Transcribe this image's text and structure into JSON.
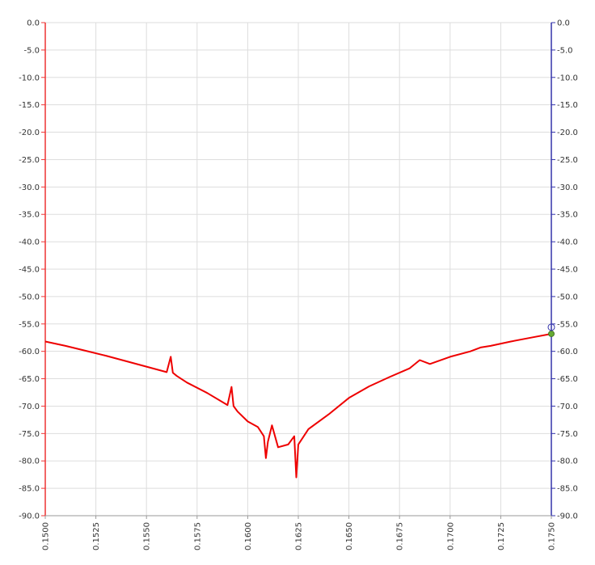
{
  "chart_data": {
    "type": "line",
    "title": "",
    "xlabel": "",
    "ylabel": "",
    "xlim": [
      0.15,
      0.175
    ],
    "ylim": [
      -90,
      0
    ],
    "grid": true,
    "x_ticks": [
      "0.1500",
      "0.1525",
      "0.1550",
      "0.1575",
      "0.1600",
      "0.1625",
      "0.1650",
      "0.1675",
      "0.1700",
      "0.1725",
      "0.1750"
    ],
    "y_ticks_left": [
      "0.0",
      "-5.0",
      "-10.0",
      "-15.0",
      "-20.0",
      "-25.0",
      "-30.0",
      "-35.0",
      "-40.0",
      "-45.0",
      "-50.0",
      "-55.0",
      "-60.0",
      "-65.0",
      "-70.0",
      "-75.0",
      "-80.0",
      "-85.0",
      "-90.0"
    ],
    "y_ticks_right": [
      "0.0",
      "-5.0",
      "-10.0",
      "-15.0",
      "-20.0",
      "-25.0",
      "-30.0",
      "-35.0",
      "-40.0",
      "-45.0",
      "-50.0",
      "-55.0",
      "-60.0",
      "-65.0",
      "-70.0",
      "-75.0",
      "-80.0",
      "-85.0",
      "-90.0"
    ],
    "colors": {
      "series": "#ee0000",
      "left_axis": "#ee3333",
      "right_axis": "#3333aa",
      "grid": "#dddddd",
      "marker": "#66aa33"
    },
    "series": [
      {
        "x": [
          0.15,
          0.151,
          0.152,
          0.153,
          0.154,
          0.155,
          0.156,
          0.1562,
          0.1563,
          0.1565,
          0.157,
          0.158,
          0.159,
          0.1592,
          0.1593,
          0.1595,
          0.16,
          0.1605,
          0.1608,
          0.1609,
          0.161,
          0.1612,
          0.1615,
          0.162,
          0.1623,
          0.1624,
          0.1625,
          0.163,
          0.164,
          0.165,
          0.166,
          0.167,
          0.168,
          0.1685,
          0.169,
          0.17,
          0.171,
          0.1715,
          0.172,
          0.173,
          0.174,
          0.175
        ],
        "y": [
          -58.2,
          -59.0,
          -59.9,
          -60.8,
          -61.8,
          -62.8,
          -63.8,
          -61.0,
          -63.9,
          -64.5,
          -65.7,
          -67.6,
          -69.8,
          -66.5,
          -70.0,
          -71.0,
          -72.8,
          -73.8,
          -75.5,
          -79.5,
          -76.5,
          -73.5,
          -77.5,
          -77.0,
          -75.5,
          -83.0,
          -77.0,
          -74.2,
          -71.5,
          -68.5,
          -66.4,
          -64.7,
          -63.1,
          -61.6,
          -62.3,
          -61.0,
          -60.0,
          -59.3,
          -59.0,
          -58.2,
          -57.5,
          -56.8
        ]
      }
    ]
  }
}
